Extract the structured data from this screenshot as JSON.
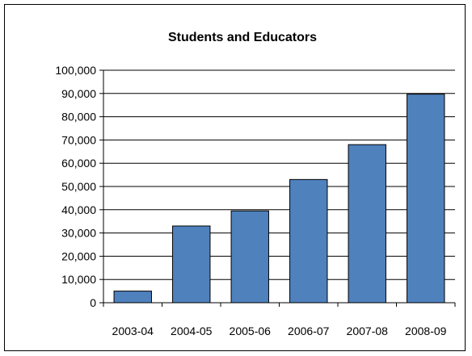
{
  "chart_data": {
    "type": "bar",
    "title": "Students and Educators",
    "xlabel": "",
    "ylabel": "",
    "categories": [
      "2003-04",
      "2004-05",
      "2005-06",
      "2006-07",
      "2007-08",
      "2008-09"
    ],
    "values": [
      5000,
      33000,
      39500,
      53000,
      68000,
      89700
    ],
    "ylim": [
      0,
      100000
    ],
    "yticks": [
      "0",
      "10,000",
      "20,000",
      "30,000",
      "40,000",
      "50,000",
      "60,000",
      "70,000",
      "80,000",
      "90,000",
      "100,000"
    ],
    "grid": true,
    "legend": "none",
    "bar_color": "#4F81BD"
  }
}
